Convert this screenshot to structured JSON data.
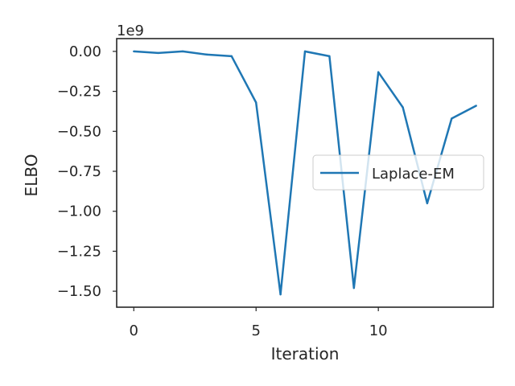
{
  "chart_data": {
    "type": "line",
    "xlabel": "Iteration",
    "ylabel": "ELBO",
    "y_offset_label": "1e9",
    "y_scale": 1000000000,
    "xlim": [
      -0.7,
      14.7
    ],
    "ylim": [
      -1.6,
      0.08
    ],
    "x_ticks": [
      0,
      5,
      10
    ],
    "x_tick_labels": [
      "0",
      "5",
      "10"
    ],
    "y_ticks": [
      0.0,
      -0.25,
      -0.5,
      -0.75,
      -1.0,
      -1.25,
      -1.5
    ],
    "y_tick_labels": [
      "0.00",
      "−0.25",
      "−0.50",
      "−0.75",
      "−1.00",
      "−1.25",
      "−1.50"
    ],
    "grid": false,
    "legend_position": "center-right",
    "series": [
      {
        "name": "Laplace-EM",
        "color": "#1f77b4",
        "x": [
          0,
          1,
          2,
          3,
          4,
          5,
          6,
          7,
          8,
          9,
          10,
          11,
          12,
          13,
          14
        ],
        "y": [
          0.0,
          -0.01,
          0.0,
          -0.02,
          -0.03,
          -0.32,
          -1.52,
          0.0,
          -0.03,
          -1.48,
          -0.13,
          -0.35,
          -0.95,
          -0.42,
          -0.34
        ]
      }
    ]
  }
}
